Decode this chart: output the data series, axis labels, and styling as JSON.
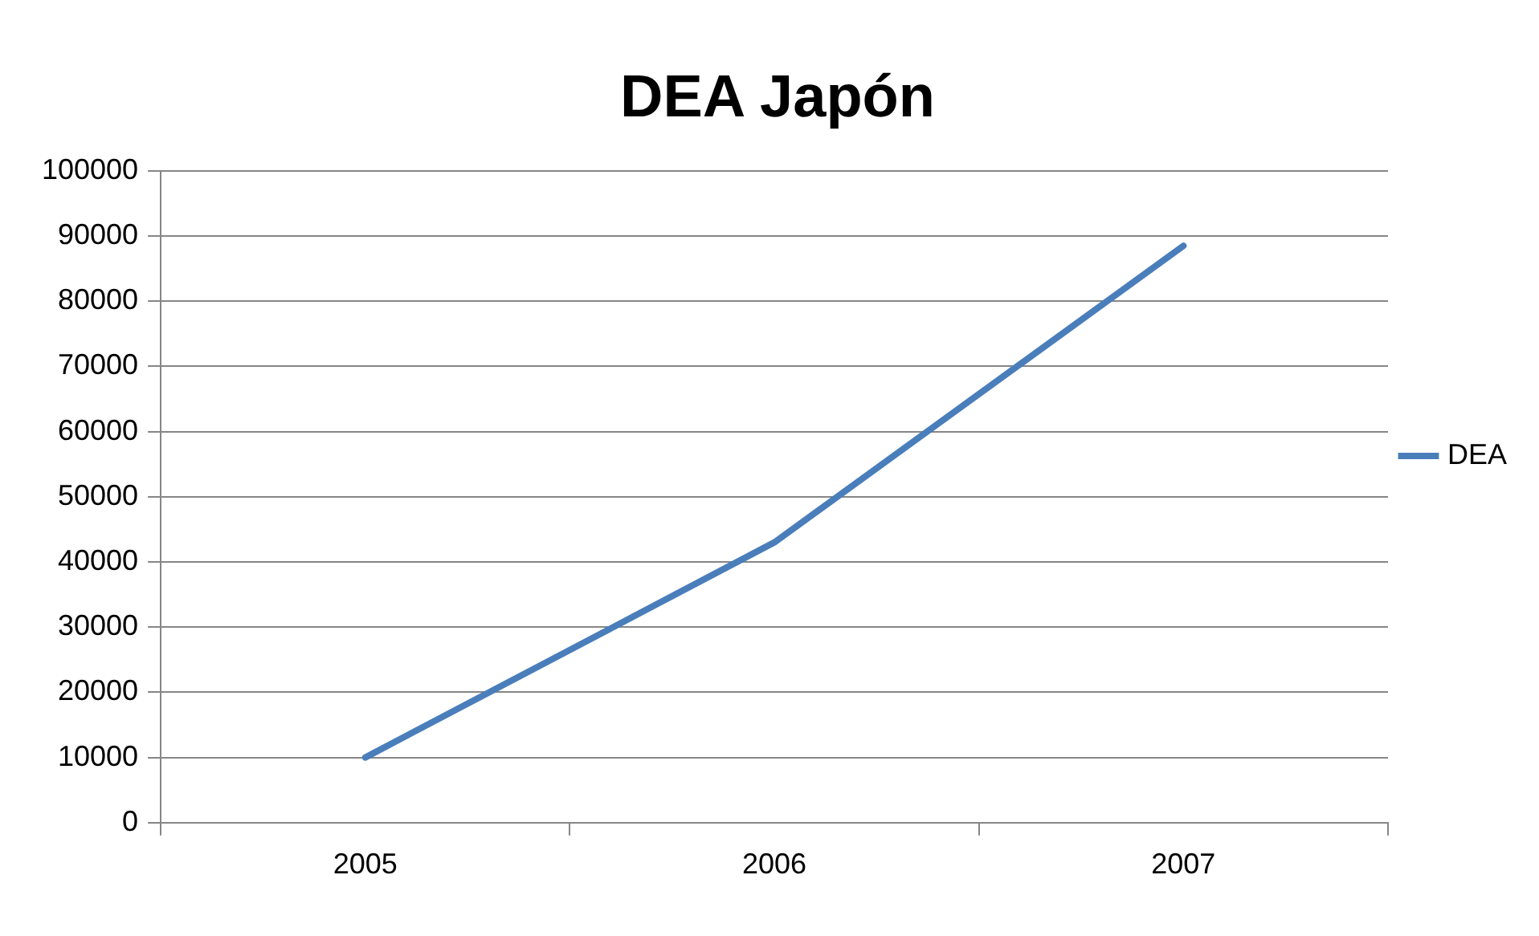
{
  "chart_data": {
    "type": "line",
    "title": "DEA Japón",
    "categories": [
      "2005",
      "2006",
      "2007"
    ],
    "series": [
      {
        "name": "DEA",
        "color": "#4a7ebb",
        "values": [
          10000,
          43000,
          88500
        ]
      }
    ],
    "ylim": [
      0,
      100000
    ],
    "yticks": [
      0,
      10000,
      20000,
      30000,
      40000,
      50000,
      60000,
      70000,
      80000,
      90000,
      100000
    ],
    "grid": "y",
    "legend": "right",
    "marker": "none",
    "line_style": "solid"
  }
}
